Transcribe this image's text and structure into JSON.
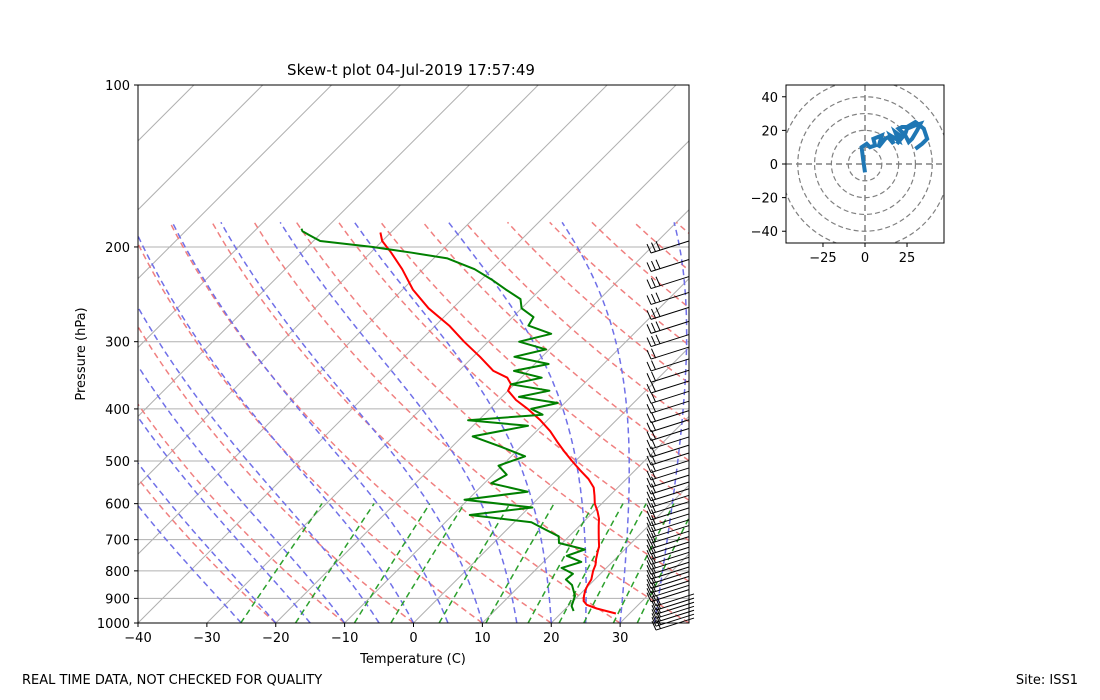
{
  "title": "Skew-t plot 04-Jul-2019 17:57:49",
  "footer_left": "REAL TIME DATA, NOT CHECKED FOR QUALITY",
  "footer_right": "Site: ISS1",
  "chart_data": [
    {
      "type": "line",
      "subtype": "skew-t",
      "title": "Skew-t plot 04-Jul-2019 17:57:49",
      "xlabel": "Temperature (C)",
      "ylabel": "Pressure (hPa)",
      "x_ticks": [
        -40,
        -30,
        -20,
        -10,
        0,
        10,
        20,
        30
      ],
      "y_ticks": [
        100,
        200,
        300,
        400,
        500,
        600,
        700,
        800,
        900,
        1000
      ],
      "xlim": [
        -40,
        40
      ],
      "ylim": [
        1000,
        100
      ],
      "y_scale": "log",
      "grid": true,
      "colors": {
        "temperature": "#ff0000",
        "dewpoint": "#008000",
        "dry_adiabats": "#f08080",
        "moist_adiabats": "#7070e8",
        "mixing_ratio": "#2ca02c",
        "isotherms": "#b0b0b0",
        "barbs": "#000000"
      },
      "series": [
        {
          "pressure": [
            960,
            940,
            925,
            910,
            890,
            870,
            850,
            830,
            800,
            780,
            760,
            740,
            720,
            700,
            680,
            660,
            640,
            620,
            600,
            580,
            560,
            540,
            520,
            500,
            480,
            460,
            440,
            420,
            400,
            385,
            370,
            360,
            350,
            340,
            320,
            300,
            280,
            260,
            240,
            220,
            205,
            195,
            188
          ],
          "values": [
            28.0,
            24.5,
            22.5,
            21.5,
            20.8,
            20.2,
            19.8,
            19.5,
            18.5,
            18.0,
            17.2,
            16.5,
            15.8,
            14.8,
            13.8,
            12.8,
            11.8,
            10.5,
            9.0,
            7.8,
            6.5,
            4.5,
            2.0,
            -0.5,
            -3.0,
            -5.5,
            -8.0,
            -11.0,
            -14.5,
            -17.5,
            -20.0,
            -20.5,
            -22.0,
            -25.0,
            -29.0,
            -33.5,
            -38.0,
            -43.5,
            -48.5,
            -53.0,
            -57.0,
            -60.0,
            -61.5
          ]
        },
        {
          "pressure": [
            950,
            930,
            910,
            890,
            870,
            850,
            830,
            810,
            790,
            770,
            750,
            730,
            710,
            690,
            670,
            650,
            630,
            610,
            590,
            570,
            550,
            530,
            510,
            490,
            470,
            450,
            430,
            420,
            410,
            400,
            390,
            380,
            370,
            360,
            350,
            340,
            330,
            320,
            310,
            300,
            290,
            280,
            270,
            260,
            250,
            240,
            230,
            220,
            210,
            205,
            200,
            195,
            190,
            187,
            185
          ],
          "values": [
            21.5,
            20.5,
            20.0,
            19.5,
            18.5,
            17.5,
            15.8,
            16.0,
            13.5,
            15.5,
            12.5,
            14.2,
            9.5,
            8.5,
            5.5,
            2.5,
            -7.5,
            0.5,
            -10.5,
            -2.5,
            -9.0,
            -8.0,
            -10.5,
            -8.0,
            -13.0,
            -18.5,
            -12.0,
            -21.5,
            -11.5,
            -14.0,
            -11.0,
            -17.5,
            -14.0,
            -20.5,
            -17.0,
            -22.0,
            -18.0,
            -24.0,
            -20.5,
            -25.5,
            -22.0,
            -26.5,
            -27.0,
            -30.0,
            -31.5,
            -35.0,
            -38.5,
            -42.5,
            -48.0,
            -54.0,
            -60.5,
            -69.0,
            -71.5,
            -73.0,
            -73.5
          ]
        }
      ]
    },
    {
      "type": "line",
      "subtype": "hodograph",
      "x_ticks": [
        -25,
        0,
        25
      ],
      "y_ticks": [
        -40,
        -20,
        0,
        20,
        40
      ],
      "xlim": [
        -47,
        47
      ],
      "ylim": [
        -47,
        47
      ],
      "color": "#1f77b4",
      "series": [
        {
          "x": [
            0,
            -1,
            -2,
            1,
            3,
            6,
            5,
            10,
            8,
            12,
            10,
            14,
            17,
            15,
            20,
            18,
            22,
            19,
            24,
            25,
            30,
            33,
            31,
            28,
            26,
            24,
            20,
            22,
            25,
            30,
            35,
            37,
            34,
            30
          ],
          "y": [
            -5,
            2,
            10,
            12,
            10,
            11,
            15,
            17,
            10,
            15,
            14,
            16,
            12,
            17,
            14,
            19,
            16,
            12,
            18,
            21,
            23,
            24,
            20,
            15,
            13,
            17,
            21,
            22,
            22,
            25,
            21,
            15,
            12,
            9
          ]
        }
      ]
    }
  ]
}
